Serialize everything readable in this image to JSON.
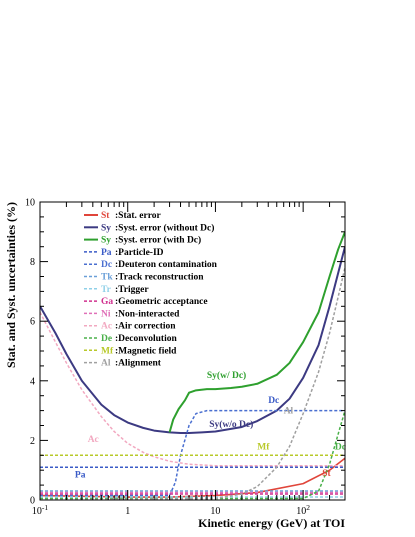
{
  "chart_data": {
    "type": "line",
    "title": "",
    "xlabel": "Kinetic energy (GeV) at TOI",
    "ylabel": "Stat. and Syst. uncertainties (%)",
    "xscale": "log",
    "xlim": [
      0.1,
      300
    ],
    "ylim": [
      0,
      10
    ],
    "x_tick_labels": [
      "10^-1",
      "1",
      "10",
      "10^2"
    ],
    "y_tick_labels": [
      "0",
      "2",
      "4",
      "6",
      "8",
      "10"
    ],
    "legend_position": "top-center",
    "series": [
      {
        "abbr": "St",
        "name": ":Stat. error",
        "style": "solid",
        "color": "#e0453a",
        "points": [
          [
            0.1,
            0.15
          ],
          [
            1,
            0.1
          ],
          [
            3,
            0.1
          ],
          [
            10,
            0.15
          ],
          [
            30,
            0.25
          ],
          [
            100,
            0.55
          ],
          [
            200,
            1.0
          ],
          [
            300,
            1.4
          ]
        ]
      },
      {
        "abbr": "Sy",
        "name": ":Syst. error (without Dc)",
        "style": "solid",
        "color": "#3c3a82",
        "points": [
          [
            0.1,
            6.5
          ],
          [
            0.15,
            5.6
          ],
          [
            0.2,
            4.9
          ],
          [
            0.3,
            4.0
          ],
          [
            0.5,
            3.2
          ],
          [
            0.7,
            2.85
          ],
          [
            1,
            2.6
          ],
          [
            1.5,
            2.42
          ],
          [
            2,
            2.33
          ],
          [
            3,
            2.27
          ],
          [
            4,
            2.25
          ],
          [
            5,
            2.25
          ],
          [
            7,
            2.27
          ],
          [
            10,
            2.3
          ],
          [
            20,
            2.45
          ],
          [
            30,
            2.65
          ],
          [
            50,
            3.0
          ],
          [
            70,
            3.4
          ],
          [
            100,
            4.1
          ],
          [
            150,
            5.2
          ],
          [
            200,
            6.5
          ],
          [
            250,
            7.6
          ],
          [
            300,
            8.5
          ]
        ]
      },
      {
        "abbr": "Sy",
        "name": ":Syst. error (with Dc)",
        "style": "solid",
        "color": "#2ea02e",
        "points": [
          [
            3,
            2.27
          ],
          [
            3.3,
            2.7
          ],
          [
            3.8,
            3.05
          ],
          [
            4.5,
            3.35
          ],
          [
            5,
            3.6
          ],
          [
            6,
            3.68
          ],
          [
            8,
            3.72
          ],
          [
            10,
            3.72
          ],
          [
            15,
            3.76
          ],
          [
            20,
            3.8
          ],
          [
            30,
            3.9
          ],
          [
            50,
            4.2
          ],
          [
            70,
            4.6
          ],
          [
            100,
            5.3
          ],
          [
            150,
            6.3
          ],
          [
            200,
            7.5
          ],
          [
            250,
            8.4
          ],
          [
            300,
            9.0
          ]
        ]
      },
      {
        "abbr": "Pa",
        "name": ":Particle-ID",
        "style": "dashed",
        "color": "#3a5bc7",
        "points": [
          [
            0.1,
            1.1
          ],
          [
            300,
            1.1
          ]
        ]
      },
      {
        "abbr": "Dc",
        "name": ":Deuteron contamination",
        "style": "dashed",
        "color": "#4a6fd0",
        "points": [
          [
            0.1,
            0.15
          ],
          [
            3,
            0.15
          ],
          [
            3.5,
            0.6
          ],
          [
            4,
            1.5
          ],
          [
            5,
            2.5
          ],
          [
            6,
            2.9
          ],
          [
            8,
            3.0
          ],
          [
            300,
            3.0
          ]
        ]
      },
      {
        "abbr": "Tk",
        "name": ":Track reconstruction",
        "style": "dashed",
        "color": "#6a9fd8",
        "points": [
          [
            0.1,
            0.3
          ],
          [
            300,
            0.3
          ]
        ]
      },
      {
        "abbr": "Tr",
        "name": ":Trigger",
        "style": "dashed",
        "color": "#8fd0e8",
        "points": [
          [
            0.1,
            0.1
          ],
          [
            300,
            0.1
          ]
        ]
      },
      {
        "abbr": "Ga",
        "name": ":Geometric acceptance",
        "style": "dashed",
        "color": "#d0308f",
        "points": [
          [
            0.1,
            0.2
          ],
          [
            300,
            0.2
          ]
        ]
      },
      {
        "abbr": "Ni",
        "name": ":Non-interacted",
        "style": "dashed",
        "color": "#e070b8",
        "points": [
          [
            0.1,
            0.25
          ],
          [
            300,
            0.25
          ]
        ]
      },
      {
        "abbr": "Ac",
        "name": ":Air correction",
        "style": "dashed",
        "color": "#f2a8c0",
        "points": [
          [
            0.1,
            6.3
          ],
          [
            0.15,
            5.3
          ],
          [
            0.2,
            4.6
          ],
          [
            0.3,
            3.7
          ],
          [
            0.5,
            2.8
          ],
          [
            0.7,
            2.3
          ],
          [
            1,
            1.9
          ],
          [
            1.5,
            1.6
          ],
          [
            2,
            1.45
          ],
          [
            3,
            1.3
          ],
          [
            5,
            1.2
          ],
          [
            10,
            1.15
          ],
          [
            100,
            1.15
          ],
          [
            300,
            1.15
          ]
        ]
      },
      {
        "abbr": "De",
        "name": ":Deconvolution",
        "style": "dashed",
        "color": "#4ab04a",
        "points": [
          [
            0.1,
            0.05
          ],
          [
            100,
            0.05
          ],
          [
            150,
            0.3
          ],
          [
            200,
            1.2
          ],
          [
            250,
            2.2
          ],
          [
            300,
            3.0
          ]
        ]
      },
      {
        "abbr": "Mf",
        "name": ":Magnetic field",
        "style": "dashed",
        "color": "#b8c92a",
        "points": [
          [
            0.1,
            1.5
          ],
          [
            300,
            1.5
          ]
        ]
      },
      {
        "abbr": "Al",
        "name": ":Alignment",
        "style": "dashed",
        "color": "#a0a0a0",
        "points": [
          [
            0.1,
            0.0
          ],
          [
            10,
            0.05
          ],
          [
            20,
            0.2
          ],
          [
            30,
            0.45
          ],
          [
            50,
            1.1
          ],
          [
            70,
            1.8
          ],
          [
            100,
            2.9
          ],
          [
            150,
            4.3
          ],
          [
            200,
            5.6
          ],
          [
            250,
            6.8
          ],
          [
            300,
            7.8
          ]
        ]
      }
    ],
    "annotations": [
      {
        "text": "Sy(w/ Dc)",
        "x": 8,
        "y": 4.1,
        "color": "#2ea02e"
      },
      {
        "text": "Dc",
        "x": 40,
        "y": 3.25,
        "color": "#3a5bc7"
      },
      {
        "text": "Sy(w/o Dc)",
        "x": 8.5,
        "y": 2.45,
        "color": "#3c3a82"
      },
      {
        "text": "Ac",
        "x": 0.35,
        "y": 1.95,
        "color": "#f2a8c0"
      },
      {
        "text": "Mf",
        "x": 30,
        "y": 1.7,
        "color": "#b8c92a"
      },
      {
        "text": "Al",
        "x": 60,
        "y": 2.9,
        "color": "#a0a0a0"
      },
      {
        "text": "Dc",
        "x": 230,
        "y": 1.7,
        "color": "#4ab04a"
      },
      {
        "text": "Pa",
        "x": 0.25,
        "y": 0.75,
        "color": "#3a5bc7"
      },
      {
        "text": "St",
        "x": 165,
        "y": 0.8,
        "color": "#e0453a"
      }
    ]
  }
}
